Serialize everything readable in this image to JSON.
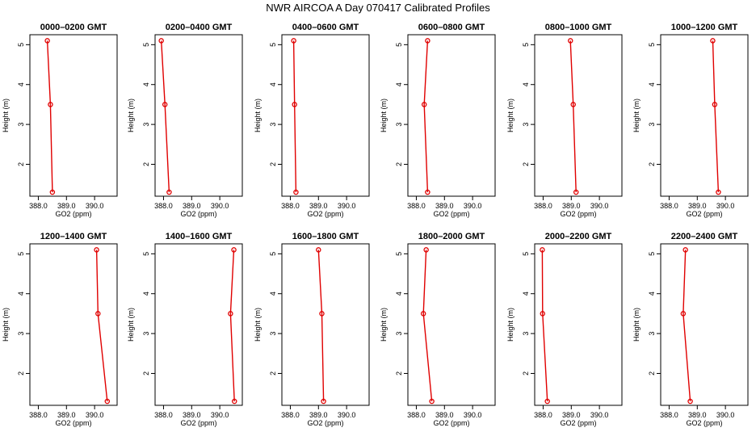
{
  "title": "NWR AIRCOA A  Day 070417  Calibrated Profiles",
  "colors": {
    "series": "#e00000",
    "axis": "#000000"
  },
  "chart_data": {
    "type": "line",
    "xlabel": "GO2 (ppm)",
    "ylabel": "Height (m)",
    "xlim": [
      387.7,
      390.8
    ],
    "ylim": [
      1.2,
      5.25
    ],
    "xticks": [
      388.0,
      389.0,
      390.0
    ],
    "xtick_labels": [
      "388.0",
      "389.0",
      "390.0"
    ],
    "yticks": [
      2,
      3,
      4,
      5
    ],
    "ytick_labels": [
      "2",
      "3",
      "4",
      "5"
    ],
    "grid": false,
    "legend": "none",
    "panels": [
      {
        "title": "0000–0200 GMT",
        "points": [
          {
            "x": 388.32,
            "y": 5.1
          },
          {
            "x": 388.43,
            "y": 3.5
          },
          {
            "x": 388.5,
            "y": 1.3
          }
        ]
      },
      {
        "title": "0200–0400 GMT",
        "points": [
          {
            "x": 387.92,
            "y": 5.1
          },
          {
            "x": 388.05,
            "y": 3.5
          },
          {
            "x": 388.2,
            "y": 1.3
          }
        ]
      },
      {
        "title": "0400–0600 GMT",
        "points": [
          {
            "x": 388.12,
            "y": 5.1
          },
          {
            "x": 388.15,
            "y": 3.5
          },
          {
            "x": 388.2,
            "y": 1.3
          }
        ]
      },
      {
        "title": "0600–0800 GMT",
        "points": [
          {
            "x": 388.4,
            "y": 5.1
          },
          {
            "x": 388.28,
            "y": 3.5
          },
          {
            "x": 388.4,
            "y": 1.3
          }
        ]
      },
      {
        "title": "0800–1000 GMT",
        "points": [
          {
            "x": 388.97,
            "y": 5.1
          },
          {
            "x": 389.07,
            "y": 3.5
          },
          {
            "x": 389.17,
            "y": 1.3
          }
        ]
      },
      {
        "title": "1000–1200 GMT",
        "points": [
          {
            "x": 389.55,
            "y": 5.1
          },
          {
            "x": 389.62,
            "y": 3.5
          },
          {
            "x": 389.75,
            "y": 1.3
          }
        ]
      },
      {
        "title": "1200–1400 GMT",
        "points": [
          {
            "x": 390.07,
            "y": 5.1
          },
          {
            "x": 390.12,
            "y": 3.5
          },
          {
            "x": 390.45,
            "y": 1.3
          }
        ]
      },
      {
        "title": "1400–1600 GMT",
        "points": [
          {
            "x": 390.5,
            "y": 5.1
          },
          {
            "x": 390.38,
            "y": 3.5
          },
          {
            "x": 390.52,
            "y": 1.3
          }
        ]
      },
      {
        "title": "1600–1800 GMT",
        "points": [
          {
            "x": 389.0,
            "y": 5.1
          },
          {
            "x": 389.12,
            "y": 3.5
          },
          {
            "x": 389.18,
            "y": 1.3
          }
        ]
      },
      {
        "title": "1800–2000 GMT",
        "points": [
          {
            "x": 388.35,
            "y": 5.1
          },
          {
            "x": 388.25,
            "y": 3.5
          },
          {
            "x": 388.55,
            "y": 1.3
          }
        ]
      },
      {
        "title": "2000–2200 GMT",
        "points": [
          {
            "x": 387.97,
            "y": 5.1
          },
          {
            "x": 387.98,
            "y": 3.5
          },
          {
            "x": 388.15,
            "y": 1.3
          }
        ]
      },
      {
        "title": "2200–2400 GMT",
        "points": [
          {
            "x": 388.58,
            "y": 5.1
          },
          {
            "x": 388.5,
            "y": 3.5
          },
          {
            "x": 388.75,
            "y": 1.3
          }
        ]
      }
    ]
  }
}
